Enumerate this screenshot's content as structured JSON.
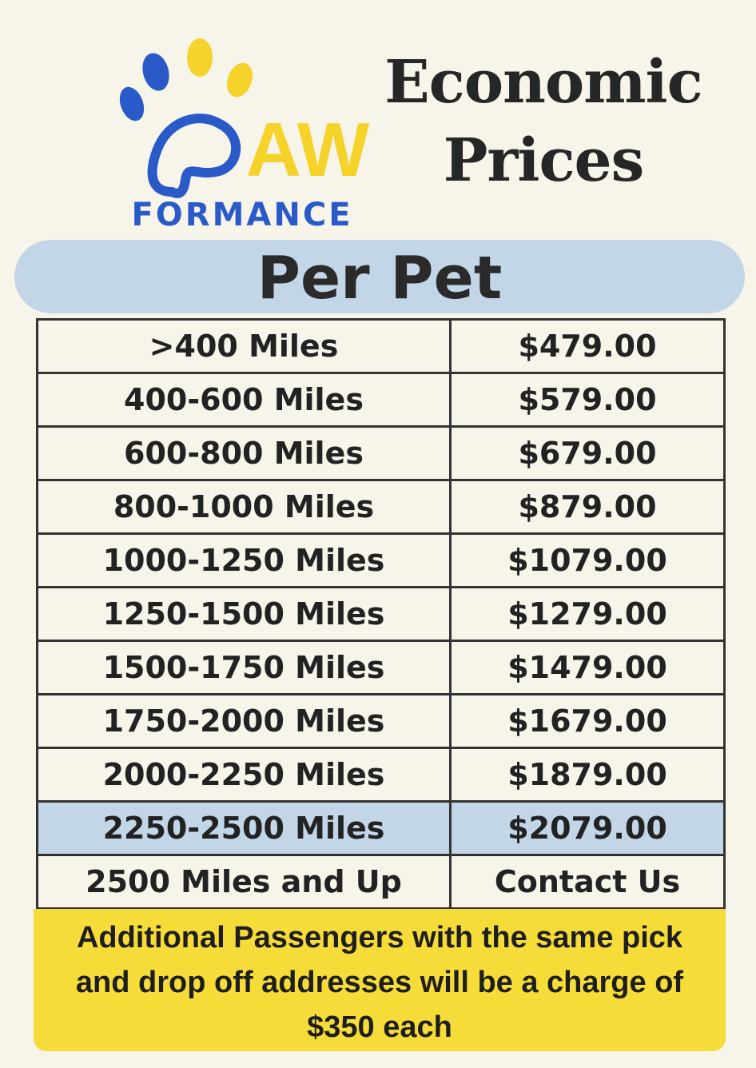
{
  "logo": {
    "mark": "AW",
    "text": "FORMANCE"
  },
  "title": {
    "line1": "Economic",
    "line2": "Prices"
  },
  "banner": "Per Pet",
  "table": {
    "rows": [
      [
        ">400 Miles",
        "$479.00"
      ],
      [
        "400-600 Miles",
        "$579.00"
      ],
      [
        "600-800 Miles",
        "$679.00"
      ],
      [
        "800-1000 Miles",
        "$879.00"
      ],
      [
        "1000-1250 Miles",
        "$1079.00"
      ],
      [
        "1250-1500 Miles",
        "$1279.00"
      ],
      [
        "1500-1750 Miles",
        "$1479.00"
      ],
      [
        "1750-2000 Miles",
        "$1679.00"
      ],
      [
        "2000-2250 Miles",
        "$1879.00"
      ],
      [
        "2250-2500 Miles",
        "$2079.00"
      ],
      [
        "2500 Miles and Up",
        "Contact Us"
      ]
    ]
  },
  "note": {
    "lines": [
      "Additional Passengers with the same pick",
      "and drop off addresses will be a charge of",
      "$350 each"
    ]
  }
}
